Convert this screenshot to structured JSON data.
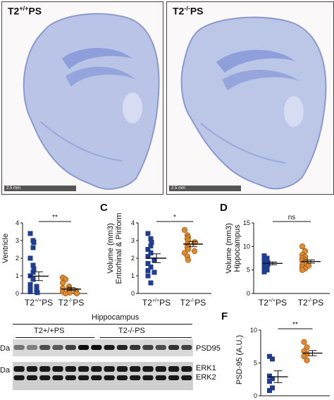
{
  "top_images": [
    {
      "label": "T2+/+PS",
      "label_base": "T2",
      "label_sup": "+/+",
      "label_rest": "PS",
      "scale": "2.5 mm"
    },
    {
      "label": "T2-/-PS",
      "label_base": "T2",
      "label_sup": "-/-",
      "label_rest": "PS",
      "scale": "2.5 mm"
    }
  ],
  "chart_data": [
    {
      "panel": "",
      "type": "scatter",
      "ylabel": "Ventricle",
      "categories": [
        "T2+/+PS",
        "T2-/-PS"
      ],
      "ylim": [
        0,
        4
      ],
      "yticks": [
        0,
        1,
        2,
        3,
        4
      ],
      "significance": "**",
      "series": [
        {
          "values": [
            3.4,
            3.0,
            2.9,
            2.6,
            2.0,
            1.6,
            1.4,
            1.2,
            1.0,
            0.8,
            0.5,
            0.4,
            0.3,
            0.2,
            0.1,
            0.1,
            0.05
          ],
          "mean": 0.98,
          "sem": 0.25,
          "color": "#1f3d91",
          "marker": "square"
        },
        {
          "values": [
            0.9,
            0.8,
            0.6,
            0.4,
            0.3,
            0.25,
            0.2,
            0.15,
            0.1,
            0.1,
            0.05,
            0.05,
            0.0,
            0.0
          ],
          "mean": 0.25,
          "sem": 0.08,
          "color": "#e08a2c",
          "marker": "circle"
        }
      ]
    },
    {
      "panel": "C",
      "type": "scatter",
      "ylabel": "Volume (mm3)\nEntorhinal & Piriform",
      "categories": [
        "T2+/+PS",
        "T2-/-PS"
      ],
      "ylim": [
        0,
        4
      ],
      "yticks": [
        0,
        1,
        2,
        3,
        4
      ],
      "significance": "*",
      "series": [
        {
          "values": [
            3.4,
            3.1,
            2.9,
            2.7,
            2.5,
            2.3,
            2.1,
            1.9,
            1.7,
            1.5,
            1.3,
            1.2,
            1.0,
            0.6
          ],
          "mean": 2.0,
          "sem": 0.25,
          "color": "#1f3d91",
          "marker": "square"
        },
        {
          "values": [
            3.6,
            3.3,
            3.2,
            3.1,
            3.0,
            2.9,
            2.9,
            2.8,
            2.7,
            2.6,
            2.5,
            2.4,
            2.3,
            2.1,
            1.9
          ],
          "mean": 2.8,
          "sem": 0.15,
          "color": "#e08a2c",
          "marker": "circle"
        }
      ]
    },
    {
      "panel": "D",
      "type": "scatter",
      "ylabel": "Volume (mm3)\nHippocampus",
      "categories": [
        "T2+/+PS",
        "T2-/-PS"
      ],
      "ylim": [
        0,
        15
      ],
      "yticks": [
        0,
        5,
        10,
        15
      ],
      "significance": "ns",
      "series": [
        {
          "values": [
            8.0,
            7.5,
            7.2,
            7.0,
            6.8,
            6.6,
            6.5,
            6.3,
            6.2,
            6.0,
            5.8,
            5.6,
            5.3,
            5.0,
            4.6
          ],
          "mean": 6.4,
          "sem": 0.3,
          "color": "#1f3d91",
          "marker": "square"
        },
        {
          "values": [
            10.0,
            9.0,
            8.2,
            7.8,
            7.5,
            7.2,
            7.0,
            6.8,
            6.7,
            6.6,
            6.5,
            6.3,
            6.1,
            5.9,
            5.6,
            5.3,
            5.0
          ],
          "mean": 6.8,
          "sem": 0.35,
          "color": "#e08a2c",
          "marker": "circle"
        }
      ]
    },
    {
      "panel": "F",
      "type": "scatter",
      "ylabel": "PSD-95 (A.U.)",
      "categories": [
        "",
        ""
      ],
      "ylim": [
        0,
        10
      ],
      "yticks": [
        0,
        5,
        10
      ],
      "significance": "**",
      "series": [
        {
          "values": [
            6.0,
            5.6,
            3.0,
            2.6,
            2.2,
            1.2,
            0.8
          ],
          "mean": 2.9,
          "sem": 0.9,
          "color": "#1f3d91",
          "marker": "square"
        },
        {
          "values": [
            8.2,
            7.4,
            6.8,
            6.4,
            6.0,
            5.4
          ],
          "mean": 6.5,
          "sem": 0.4,
          "color": "#e08a2c",
          "marker": "circle"
        }
      ]
    }
  ],
  "blot": {
    "title": "Hippocampus",
    "group1": "T2+/+PS",
    "group2": "T2-/-PS",
    "left_label_1": "Da",
    "left_label_2": "Da",
    "band_psd95": "PSD95",
    "band_erk1": "ERK1",
    "band_erk2": "ERK2",
    "psd95_intensities": [
      0.55,
      0.5,
      0.7,
      0.65,
      0.75,
      0.95,
      0.95,
      0.9,
      0.85,
      0.8,
      0.75,
      0.7,
      0.8,
      0.75
    ],
    "erk_intensities": [
      0.9,
      0.9,
      0.9,
      0.9,
      0.9,
      0.9,
      0.9,
      0.9,
      0.9,
      0.9,
      0.9,
      0.9,
      0.9,
      0.9
    ]
  }
}
